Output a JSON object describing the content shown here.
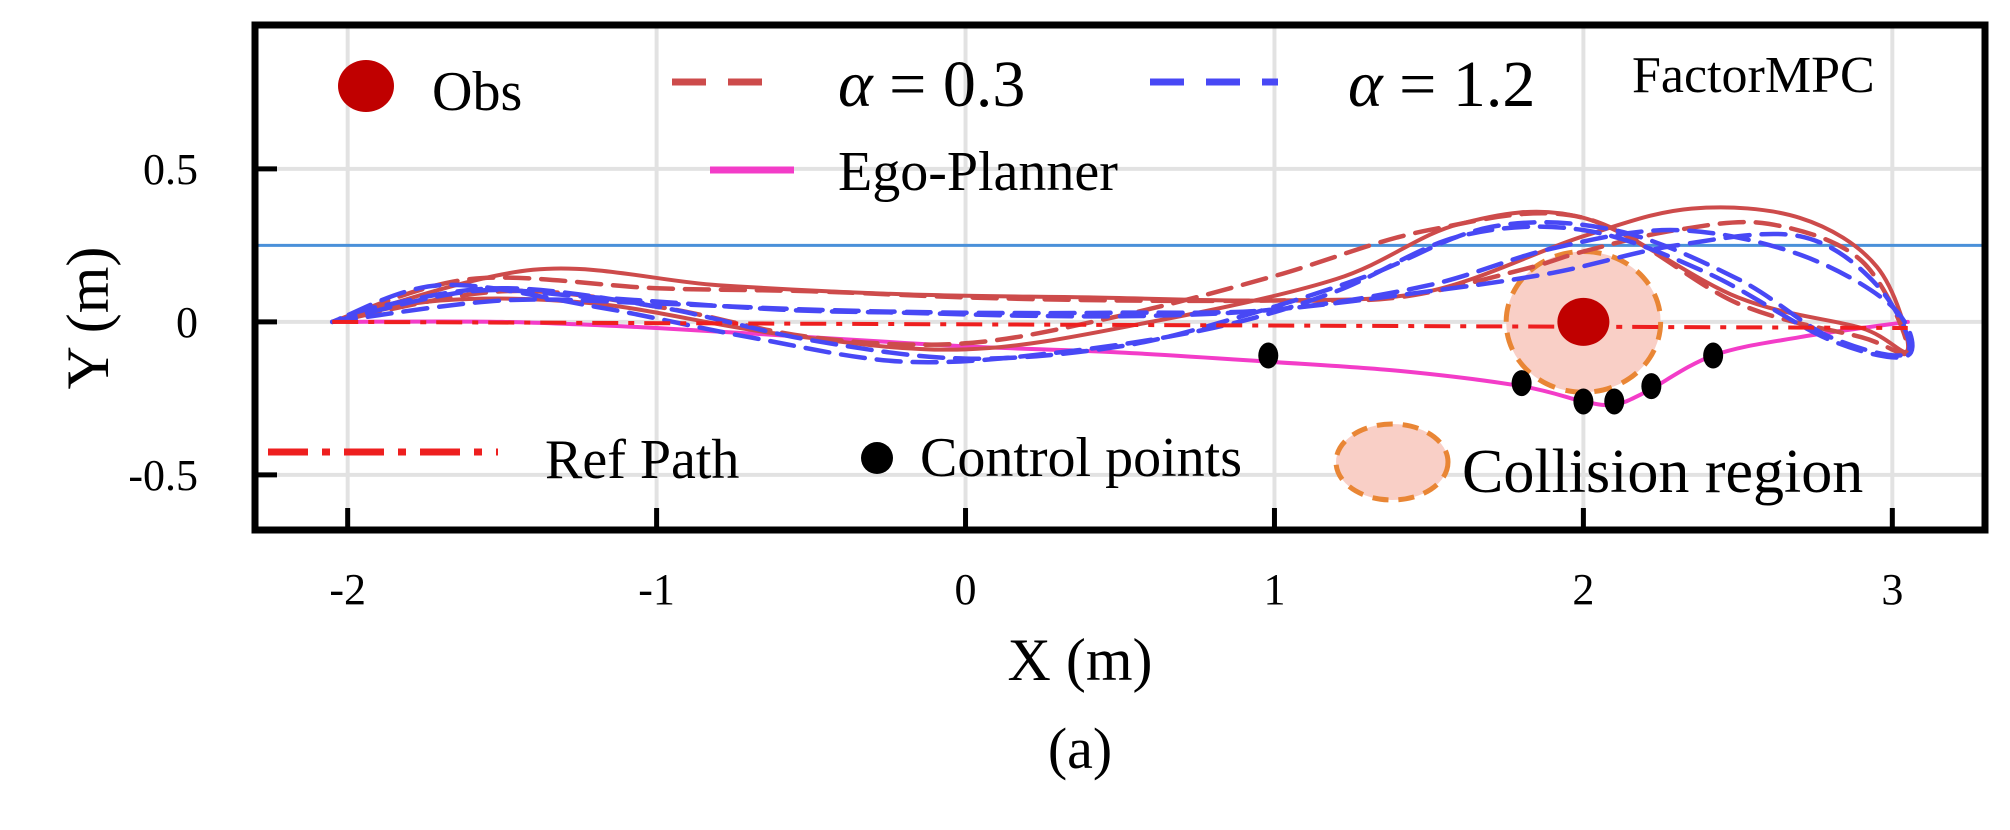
{
  "chart_data": {
    "type": "line",
    "caption": "(a)",
    "xlabel": "X (m)",
    "ylabel": "Y (m)",
    "xlim": [
      -2.3,
      3.3
    ],
    "ylim": [
      -0.68,
      0.97
    ],
    "xticks": [
      -2,
      -1,
      0,
      1,
      2,
      3
    ],
    "xtick_labels": [
      "-2",
      "-1",
      "0",
      "1",
      "2",
      "3"
    ],
    "yticks": [
      -0.5,
      0,
      0.5
    ],
    "ytick_labels": [
      "-0.5",
      "0",
      "0.5"
    ],
    "grid": true,
    "colors": {
      "alpha03": "#cd4b4b",
      "alpha12": "#4848f5",
      "ego": "#f33cc8",
      "ref": "#ee1f1f",
      "obs": "#c00000",
      "collision_fill": "#f9cfc6",
      "collision_edge": "#e98635",
      "ctrl": "#000000",
      "hline": "#4a90d9"
    },
    "legend": {
      "obs": "Obs",
      "alpha03_sym": "α",
      "alpha03_rest": " = 0.3",
      "alpha12_sym": "α",
      "alpha12_rest": " = 1.2",
      "factormpc": "FactorMPC",
      "ego": "Ego-Planner",
      "ref": "Ref Path",
      "ctrl": "Control points",
      "collision": "Collision region"
    },
    "obstacle": {
      "x": 2.0,
      "y": 0.0
    },
    "collision_region": {
      "center": [
        2.0,
        0.0
      ],
      "radius_x": 0.25,
      "radius_y": 0.23
    },
    "hline_y": 0.25,
    "ref_path": {
      "x": [
        -2.05,
        3.05
      ],
      "y": [
        0.0,
        -0.02
      ]
    },
    "control_points": {
      "x": [
        0.98,
        1.8,
        2.0,
        2.1,
        2.22,
        2.42
      ],
      "y": [
        -0.11,
        -0.2,
        -0.26,
        -0.26,
        -0.21,
        -0.11
      ]
    },
    "series": [
      {
        "name": "Ego-Planner",
        "style": "solid",
        "color_key": "ego",
        "x": [
          -2.05,
          -1.5,
          -1.0,
          -0.5,
          0.0,
          0.5,
          0.98,
          1.4,
          1.8,
          2.0,
          2.1,
          2.2,
          2.42,
          2.7,
          3.05
        ],
        "y": [
          0.0,
          0.0,
          -0.02,
          -0.05,
          -0.08,
          -0.1,
          -0.13,
          -0.16,
          -0.21,
          -0.26,
          -0.27,
          -0.23,
          -0.11,
          -0.05,
          0.0
        ]
      },
      {
        "name": "α = 0.3",
        "style": "dashed",
        "color_key": "alpha03",
        "x": [
          -2.05,
          -1.6,
          -1.0,
          -0.5,
          0.0,
          0.5,
          1.0,
          1.4,
          1.8,
          2.0,
          2.3,
          2.6,
          2.9,
          3.05,
          2.9,
          2.5,
          2.0,
          1.5,
          1.0,
          0.5,
          0.0,
          -0.5,
          -1.0,
          -1.5,
          -2.05
        ],
        "y": [
          0.0,
          0.14,
          0.11,
          0.1,
          0.08,
          0.07,
          0.07,
          0.08,
          0.17,
          0.23,
          0.3,
          0.32,
          0.2,
          -0.09,
          -0.05,
          0.06,
          0.34,
          0.3,
          0.15,
          0.02,
          -0.07,
          -0.05,
          0.05,
          0.1,
          0.0
        ]
      },
      {
        "name": "α = 0.3 (run 2)",
        "style": "solid",
        "color_key": "alpha03",
        "x": [
          -2.05,
          -1.4,
          -0.8,
          -0.2,
          0.4,
          1.0,
          1.5,
          2.0,
          2.35,
          2.7,
          2.95,
          3.05,
          2.9,
          2.5,
          2.0,
          1.6,
          1.2,
          0.6,
          0.0,
          -0.6,
          -1.2,
          -1.7,
          -2.05
        ],
        "y": [
          0.0,
          0.17,
          0.12,
          0.09,
          0.08,
          0.07,
          0.1,
          0.28,
          0.37,
          0.34,
          0.18,
          -0.09,
          -0.02,
          0.08,
          0.34,
          0.32,
          0.14,
          0.0,
          -0.09,
          -0.04,
          0.06,
          0.07,
          0.0
        ]
      },
      {
        "name": "α = 1.2",
        "style": "dashed",
        "color_key": "alpha12",
        "x": [
          -2.05,
          -1.6,
          -1.2,
          -0.6,
          -0.2,
          0.2,
          0.6,
          1.0,
          1.5,
          1.9,
          2.3,
          2.7,
          2.95,
          3.05,
          2.8,
          2.5,
          2.1,
          1.7,
          1.3,
          0.9,
          0.5,
          0.0,
          -0.5,
          -1.0,
          -1.5,
          -1.9,
          -2.05
        ],
        "y": [
          0.0,
          0.1,
          0.08,
          0.04,
          0.03,
          0.02,
          0.02,
          0.04,
          0.1,
          0.16,
          0.25,
          0.28,
          0.12,
          -0.1,
          -0.05,
          0.14,
          0.3,
          0.31,
          0.15,
          0.02,
          -0.08,
          -0.12,
          -0.06,
          0.05,
          0.11,
          0.05,
          0.0
        ]
      },
      {
        "name": "α = 1.2 (run 2)",
        "style": "dashed",
        "color_key": "alpha12",
        "x": [
          -2.05,
          -1.5,
          -1.0,
          -0.5,
          0.0,
          0.5,
          1.0,
          1.5,
          1.9,
          2.3,
          2.7,
          3.0,
          3.05,
          2.8,
          2.4,
          2.0,
          1.6,
          1.2,
          0.8,
          0.3,
          -0.2,
          -0.7,
          -1.2,
          -1.7,
          -2.05
        ],
        "y": [
          0.0,
          0.07,
          0.06,
          0.04,
          0.03,
          0.03,
          0.04,
          0.12,
          0.24,
          0.3,
          0.22,
          0.05,
          -0.11,
          -0.06,
          0.16,
          0.3,
          0.28,
          0.1,
          -0.02,
          -0.1,
          -0.13,
          -0.05,
          0.05,
          0.12,
          0.0
        ]
      }
    ]
  }
}
